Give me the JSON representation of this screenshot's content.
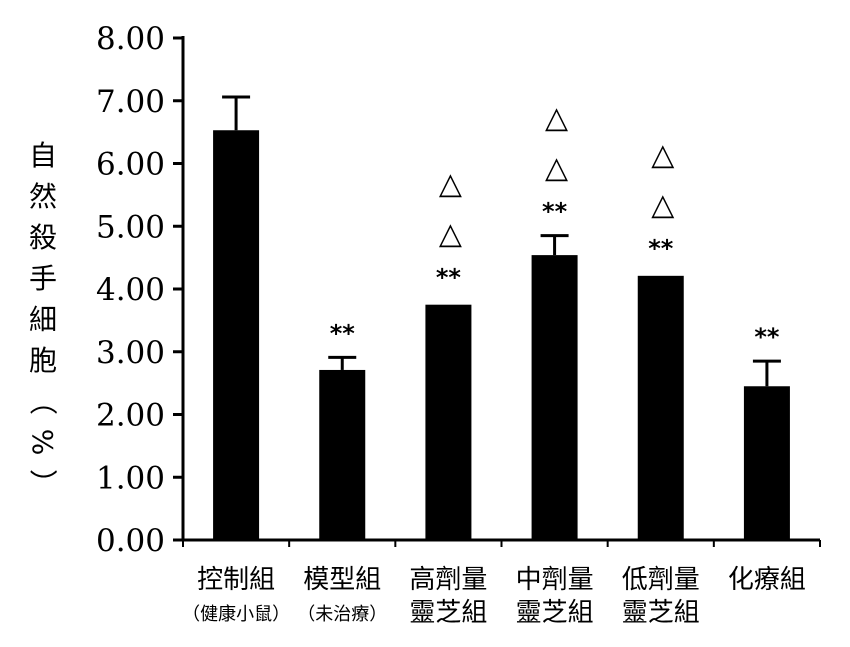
{
  "chart_data": {
    "type": "bar",
    "title": "",
    "ylabel": "自然殺手細胞（%）",
    "ylim": [
      0,
      8
    ],
    "yticks": [
      "0.00",
      "1.00",
      "2.00",
      "3.00",
      "4.00",
      "5.00",
      "6.00",
      "7.00",
      "8.00"
    ],
    "categories": [
      [
        "控制組",
        "（健康小鼠）"
      ],
      [
        "模型組",
        "（未治療）"
      ],
      [
        "高劑量",
        "靈芝組"
      ],
      [
        "中劑量",
        "靈芝組"
      ],
      [
        "低劑量",
        "靈芝組"
      ],
      [
        "化療組",
        ""
      ]
    ],
    "values": [
      6.53,
      2.71,
      3.75,
      4.54,
      4.21,
      2.45
    ],
    "errors": [
      0.53,
      0.2,
      0.02,
      0.31,
      0.03,
      0.4
    ],
    "sig_star": [
      "",
      "**",
      "**",
      "**",
      "**",
      "**"
    ],
    "sig_triangle": [
      "",
      "",
      "△\n△",
      "△\n△",
      "△\n△",
      ""
    ],
    "bar_color": "#000000",
    "grid": false
  }
}
